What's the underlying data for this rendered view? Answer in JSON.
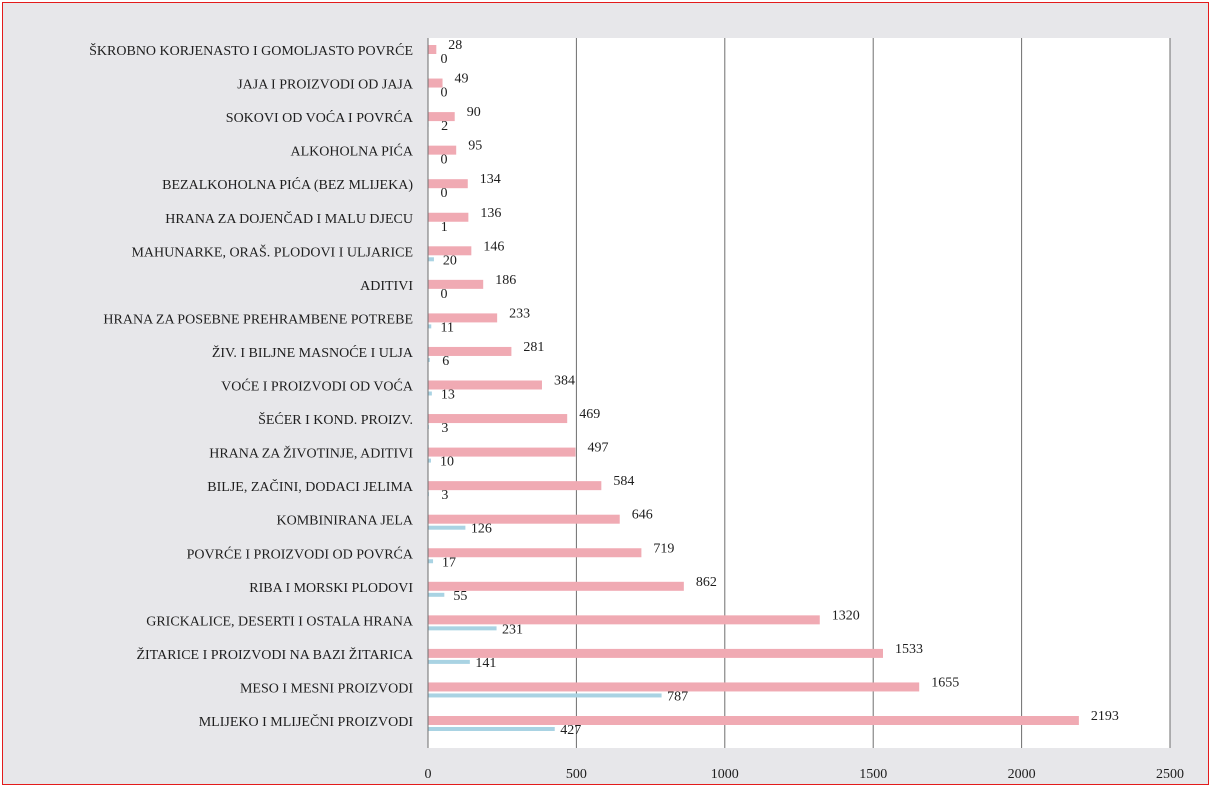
{
  "chart_data": {
    "type": "bar",
    "orientation": "horizontal",
    "title": "",
    "xlabel": "",
    "ylabel": "",
    "xlim": [
      0,
      2500
    ],
    "xticks": [
      "0",
      "500",
      "1000",
      "1500",
      "2000",
      "2500"
    ],
    "grid": "vertical",
    "legend": "none",
    "categories": [
      "ŠKROBNO KORJENASTO I GOMOLJASTO POVRĆE",
      "JAJA I PROIZVODI OD JAJA",
      "SOKOVI OD VOĆA I POVRĆA",
      "ALKOHOLNA PIĆA",
      "BEZALKOHOLNA PIĆA (BEZ MLIJEKA)",
      "HRANA ZA DOJENČAD I MALU DJECU",
      "MAHUNARKE, ORAŠ. PLODOVI I ULJARICE",
      "ADITIVI",
      "HRANA ZA POSEBNE PREHRAMBENE POTREBE",
      "ŽIV. I BILJNE MASNOĆE I ULJA",
      "VOĆE I PROIZVODI OD VOĆA",
      "ŠEĆER I KOND. PROIZV.",
      "HRANA ZA ŽIVOTINJE, ADITIVI",
      "BILJE, ZAČINI, DODACI JELIMA",
      "KOMBINIRANA JELA",
      "POVRĆE I PROIZVODI OD POVRĆA",
      "RIBA I MORSKI PLODOVI",
      "GRICKALICE, DESERTI I OSTALA HRANA",
      "ŽITARICE I PROIZVODI NA BAZI ŽITARICA",
      "MESO I MESNI PROIZVODI",
      "MLIJEKO I MLIJEČNI PROIZVODI"
    ],
    "series": [
      {
        "color": "#f0aab3",
        "values": [
          28,
          49,
          90,
          95,
          134,
          136,
          146,
          186,
          233,
          281,
          384,
          469,
          497,
          584,
          646,
          719,
          862,
          1320,
          1533,
          1655,
          2193
        ]
      },
      {
        "color": "#a9d3e3",
        "values": [
          0,
          0,
          2,
          0,
          0,
          1,
          20,
          0,
          11,
          6,
          13,
          3,
          10,
          3,
          126,
          17,
          55,
          231,
          141,
          787,
          427
        ]
      }
    ]
  }
}
